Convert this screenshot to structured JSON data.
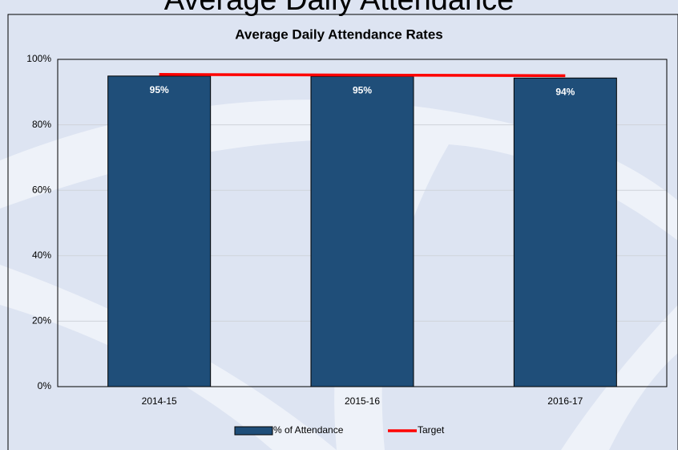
{
  "slide_title": "Average Daily Attendance",
  "chart_data": {
    "type": "bar",
    "title": "Average Daily Attendance Rates",
    "categories": [
      "2014-15",
      "2015-16",
      "2016-17"
    ],
    "series": [
      {
        "name": "% of Attendance",
        "type": "bar",
        "color": "#1f4e79",
        "values": [
          94.9,
          94.8,
          94.3
        ],
        "value_labels": [
          "95%",
          "95%",
          "94%"
        ]
      },
      {
        "name": "Target",
        "type": "line",
        "color": "#ff0000",
        "values": [
          95.4,
          95.2,
          95.0
        ]
      }
    ],
    "ylim": [
      0,
      100
    ],
    "yticks": [
      {
        "value": 0,
        "label": "0%"
      },
      {
        "value": 20,
        "label": "20%"
      },
      {
        "value": 40,
        "label": "40%"
      },
      {
        "value": 60,
        "label": "60%"
      },
      {
        "value": 80,
        "label": "80%"
      },
      {
        "value": 100,
        "label": "100%"
      }
    ],
    "grid": true,
    "legend": "bottom"
  }
}
